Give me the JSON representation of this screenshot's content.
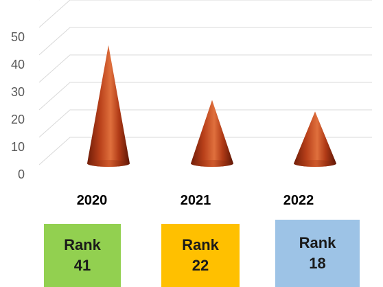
{
  "chart_data": {
    "type": "bar",
    "style": "3d-cone",
    "categories": [
      "2020",
      "2021",
      "2022"
    ],
    "values": [
      41,
      22,
      18
    ],
    "ylim": [
      0,
      60
    ],
    "yticks": [
      0,
      10,
      20,
      30,
      40,
      50
    ],
    "grid": true,
    "bar_color": "#c0401a"
  },
  "ranks": [
    {
      "line1": "Rank",
      "line2": "41",
      "color": "#92d050"
    },
    {
      "line1": "Rank",
      "line2": "22",
      "color": "#ffc000"
    },
    {
      "line1": "Rank",
      "line2": "18",
      "color": "#9dc3e6"
    }
  ]
}
